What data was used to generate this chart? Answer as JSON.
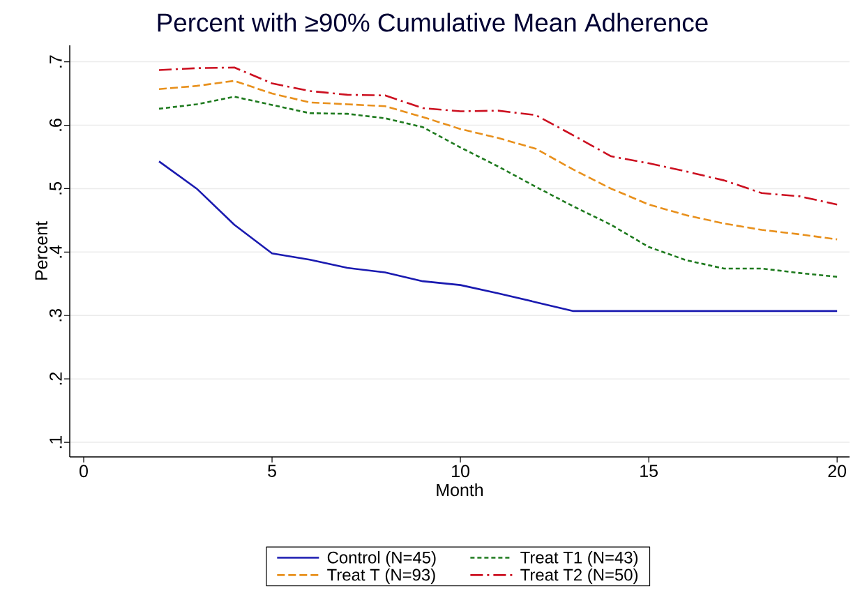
{
  "chart_data": {
    "type": "line",
    "title": "Percent with ≥90% Cumulative Mean Adherence",
    "xlabel": "Month",
    "ylabel": "Percent",
    "x": [
      2,
      3,
      4,
      5,
      6,
      7,
      8,
      9,
      10,
      11,
      12,
      13,
      14,
      15,
      16,
      17,
      18,
      19,
      20
    ],
    "series": [
      {
        "name": "Control (N=45)",
        "color": "#1a1ab0",
        "line_style": "solid",
        "values": [
          0.543,
          0.5,
          0.443,
          0.398,
          0.388,
          0.375,
          0.368,
          0.354,
          0.348,
          0.335,
          0.321,
          0.307,
          0.307,
          0.307,
          0.307,
          0.307,
          0.307,
          0.307,
          0.307
        ]
      },
      {
        "name": "Treat T (N=93)",
        "color": "#e8901c",
        "line_style": "dashed",
        "values": [
          0.657,
          0.662,
          0.67,
          0.65,
          0.636,
          0.633,
          0.63,
          0.613,
          0.594,
          0.58,
          0.563,
          0.53,
          0.5,
          0.475,
          0.458,
          0.445,
          0.435,
          0.428,
          0.42
        ]
      },
      {
        "name": "Treat T1 (N=43)",
        "color": "#1e7a1e",
        "line_style": "dotted",
        "values": [
          0.626,
          0.633,
          0.645,
          0.632,
          0.619,
          0.618,
          0.611,
          0.597,
          0.565,
          0.535,
          0.503,
          0.472,
          0.443,
          0.408,
          0.387,
          0.374,
          0.374,
          0.367,
          0.361
        ]
      },
      {
        "name": "Treat T2 (N=50)",
        "color": "#cc1020",
        "line_style": "dashdotted",
        "values": [
          0.687,
          0.69,
          0.691,
          0.666,
          0.654,
          0.648,
          0.647,
          0.627,
          0.622,
          0.623,
          0.616,
          0.584,
          0.551,
          0.54,
          0.527,
          0.513,
          0.493,
          0.488,
          0.475
        ]
      }
    ],
    "xlim": [
      -0.37,
      20.33
    ],
    "ylim": [
      0.077,
      0.726
    ],
    "xticks": [
      0,
      5,
      10,
      15,
      20
    ],
    "yticks": [
      {
        "value": 0.1,
        "label": ".1"
      },
      {
        "value": 0.2,
        "label": ".2"
      },
      {
        "value": 0.3,
        "label": ".3"
      },
      {
        "value": 0.4,
        "label": ".4"
      },
      {
        "value": 0.5,
        "label": ".5"
      },
      {
        "value": 0.6,
        "label": ".6"
      },
      {
        "value": 0.7,
        "label": ".7"
      }
    ],
    "grid": "y",
    "legend": "bottom",
    "marker": "none"
  }
}
